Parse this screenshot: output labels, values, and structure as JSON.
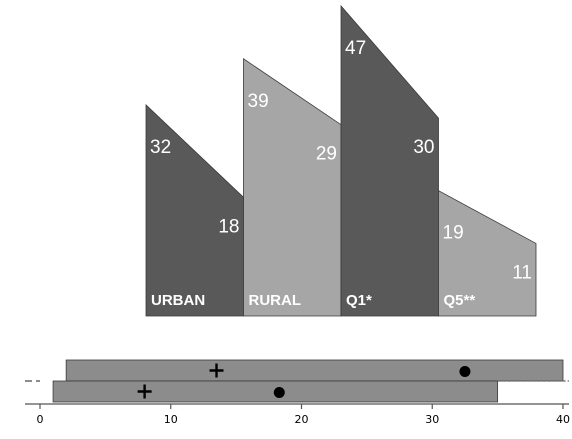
{
  "chart_data": [
    {
      "type": "area",
      "description_role": "slanted block chart",
      "categories": [
        "URBAN",
        "RURAL",
        "Q1*",
        "Q5**"
      ],
      "series": [
        {
          "values": [
            32,
            39,
            47,
            19
          ]
        },
        {
          "values": [
            18,
            29,
            30,
            11
          ]
        }
      ],
      "value_labels_start": [
        "32",
        "39",
        "47",
        "19"
      ],
      "value_labels_end": [
        "18",
        "29",
        "30",
        "11"
      ],
      "ylim": [
        0,
        47
      ],
      "colors": [
        "#595959",
        "#a6a6a6",
        "#595959",
        "#a6a6a6"
      ],
      "grid": false,
      "legend": "none"
    },
    {
      "type": "bar",
      "orientation": "horizontal",
      "xlim": [
        0,
        40
      ],
      "x_ticks": [
        "0",
        "10",
        "20",
        "30",
        "40"
      ],
      "bars": [
        {
          "start": 2,
          "end": 40,
          "plus": 13.5,
          "dot": 32.5
        },
        {
          "start": 1,
          "end": 35,
          "plus": 8,
          "dot": 18.3
        }
      ],
      "bar_color": "#8c8c8c",
      "grid": false,
      "legend": "none"
    }
  ]
}
